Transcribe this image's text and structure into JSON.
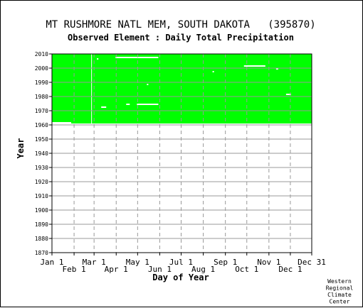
{
  "chart_data": {
    "type": "heatmap",
    "title": "MT RUSHMORE NATL MEM, SOUTH DAKOTA   (395870)",
    "subtitle": "Observed Element : Daily Total Precipitation",
    "xlabel": "Day of Year",
    "ylabel": "Year",
    "ylim": [
      1870,
      2010
    ],
    "xlim": [
      1,
      365
    ],
    "grid": true,
    "x_ticks_upper": [
      {
        "label": "Jan 1",
        "day": 1
      },
      {
        "label": "Mar 1",
        "day": 60
      },
      {
        "label": "May 1",
        "day": 121
      },
      {
        "label": "Jul 1",
        "day": 182
      },
      {
        "label": "Sep 1",
        "day": 244
      },
      {
        "label": "Nov 1",
        "day": 305
      },
      {
        "label": "Dec 31",
        "day": 365
      }
    ],
    "x_ticks_lower": [
      {
        "label": "Feb 1",
        "day": 32
      },
      {
        "label": "Apr 1",
        "day": 91
      },
      {
        "label": "Jun 1",
        "day": 152
      },
      {
        "label": "Aug 1",
        "day": 213
      },
      {
        "label": "Oct 1",
        "day": 274
      },
      {
        "label": "Dec 1",
        "day": 335
      }
    ],
    "y_ticks": [
      1870,
      1880,
      1890,
      1900,
      1910,
      1920,
      1930,
      1940,
      1950,
      1960,
      1970,
      1980,
      1990,
      2000,
      2010
    ],
    "series": [
      {
        "values": [
          {
            "year_start": 1961,
            "year_end": 2010,
            "day_start": 1,
            "day_end": 365
          }
        ]
      }
    ],
    "missing_gaps": [
      {
        "year_start": 1961,
        "year_end": 1962,
        "day_start": 1,
        "day_end": 28
      },
      {
        "year_start": 2007,
        "year_end": 2008,
        "day_start": 90,
        "day_end": 150
      },
      {
        "year_start": 2001,
        "year_end": 2002,
        "day_start": 270,
        "day_end": 300
      },
      {
        "year_start": 1974,
        "year_end": 1975,
        "day_start": 120,
        "day_end": 150
      },
      {
        "year_start": 1974,
        "year_end": 1975,
        "day_start": 105,
        "day_end": 110
      },
      {
        "year_start": 1972,
        "year_end": 1973,
        "day_start": 70,
        "day_end": 77
      },
      {
        "year_start": 1981,
        "year_end": 1982,
        "day_start": 329,
        "day_end": 336
      },
      {
        "year_start": 1961,
        "year_end": 2010,
        "day_start": 56,
        "day_end": 57
      },
      {
        "year_start": 1988,
        "year_end": 1989,
        "day_start": 134,
        "day_end": 136
      },
      {
        "year_start": 1997,
        "year_end": 1998,
        "day_start": 226,
        "day_end": 228
      },
      {
        "year_start": 2006,
        "year_end": 2007,
        "day_start": 64,
        "day_end": 66
      },
      {
        "year_start": 1999,
        "year_end": 2000,
        "day_start": 315,
        "day_end": 318
      }
    ],
    "colors": {
      "observed": "#00ff00",
      "grid": "#999999"
    },
    "credit": [
      "Western",
      "Regional",
      "Climate",
      "Center"
    ]
  }
}
